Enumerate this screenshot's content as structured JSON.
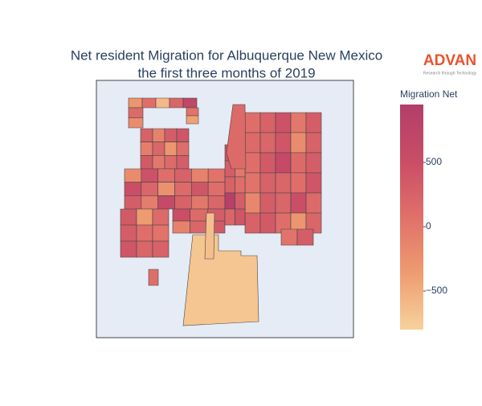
{
  "chart_data": {
    "type": "choropleth",
    "title": [
      "Net resident Migration for Albuquerque New Mexico",
      "the first three months of 2019"
    ],
    "logo": {
      "name": "ADVAN",
      "tagline": "Research through Technology"
    },
    "colorbar_title": "Migration Net",
    "colorbar_range": [
      -800,
      950
    ],
    "colorbar_ticks": [
      500,
      0,
      {
        "value": -500,
        "label": "−500"
      }
    ],
    "colorscale": [
      "#f7d29c",
      "#ee9c70",
      "#e0706a",
      "#c94d66",
      "#b23e6a"
    ],
    "values": [
      -300,
      100,
      -600,
      200,
      700,
      150,
      -200,
      50,
      -400,
      250,
      -100,
      300,
      400,
      -50,
      200,
      -300,
      100,
      350,
      0,
      150,
      300,
      -200,
      450,
      100,
      250,
      -100,
      50,
      500,
      200,
      -250,
      150,
      400,
      100,
      300,
      -50,
      600,
      250,
      0,
      200,
      350,
      -350,
      150,
      300,
      100,
      50,
      400,
      200,
      250,
      500,
      150,
      300,
      -100,
      200,
      350,
      100,
      250,
      450,
      0,
      300,
      150,
      200,
      400,
      -200,
      250,
      100,
      350,
      600,
      150,
      300,
      50,
      250,
      200,
      100,
      400,
      -150,
      300,
      200,
      500,
      150,
      250,
      350,
      100,
      -300,
      200,
      450,
      150,
      300,
      0,
      250,
      100,
      900,
      300,
      200,
      400,
      150,
      -700,
      50,
      300,
      100,
      -650
    ]
  }
}
